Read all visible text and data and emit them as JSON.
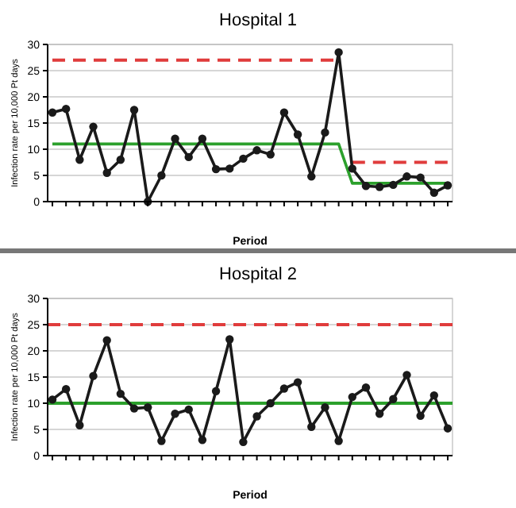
{
  "chart_data": [
    {
      "type": "line",
      "title": "Hospital 1",
      "xlabel": "Period",
      "ylabel": "Infection rate per 10,000 Pt days",
      "categories": [
        null,
        null,
        null,
        null,
        null,
        null,
        null,
        null,
        null,
        null,
        null,
        null,
        null,
        null,
        null,
        null,
        null,
        null,
        null,
        null,
        null,
        null,
        null,
        null,
        null,
        null,
        null,
        null,
        null,
        null
      ],
      "ylim": [
        0,
        30
      ],
      "yticks": [
        0,
        5,
        10,
        15,
        20,
        25,
        30
      ],
      "grid": "y",
      "marker": "circle",
      "series": [
        {
          "color": "#2ca02c",
          "marker": "none",
          "values": [
            11,
            11,
            11,
            11,
            11,
            11,
            11,
            11,
            11,
            11,
            11,
            11,
            11,
            11,
            11,
            11,
            11,
            11,
            11,
            11,
            11,
            11,
            3.5,
            3.5,
            3.5,
            3.5,
            3.5,
            3.5,
            3.5,
            3.5
          ]
        },
        {
          "color": "#e03c3c",
          "marker": "none",
          "line_style": "dashed",
          "values": [
            27,
            27,
            27,
            27,
            27,
            27,
            27,
            27,
            27,
            27,
            27,
            27,
            27,
            27,
            27,
            27,
            27,
            27,
            27,
            27,
            27,
            27,
            null,
            null,
            null,
            null,
            null,
            null,
            null,
            null
          ]
        },
        {
          "color": "#e03c3c",
          "marker": "none",
          "line_style": "dashed",
          "values": [
            null,
            null,
            null,
            null,
            null,
            null,
            null,
            null,
            null,
            null,
            null,
            null,
            null,
            null,
            null,
            null,
            null,
            null,
            null,
            null,
            null,
            null,
            7.5,
            7.5,
            7.5,
            7.5,
            7.5,
            7.5,
            7.5,
            7.5
          ]
        },
        {
          "color": "#1a1a1a",
          "values": [
            17,
            17.7,
            8,
            14.3,
            5.5,
            8,
            17.5,
            0,
            5,
            12,
            8.5,
            12,
            6.2,
            6.3,
            8.2,
            9.8,
            9,
            17,
            12.8,
            4.8,
            13.2,
            28.5,
            6.3,
            3,
            2.8,
            3.2,
            4.8,
            4.6,
            1.7,
            3.1
          ]
        }
      ]
    },
    {
      "type": "line",
      "title": "Hospital 2",
      "xlabel": "Period",
      "ylabel": "Infection rate per 10,000 Pt days",
      "categories": [
        null,
        null,
        null,
        null,
        null,
        null,
        null,
        null,
        null,
        null,
        null,
        null,
        null,
        null,
        null,
        null,
        null,
        null,
        null,
        null,
        null,
        null,
        null,
        null,
        null,
        null,
        null,
        null,
        null,
        null
      ],
      "ylim": [
        0,
        30
      ],
      "yticks": [
        0,
        5,
        10,
        15,
        20,
        25,
        30
      ],
      "grid": "y",
      "marker": "circle",
      "ref_lines": [
        {
          "axis": "y",
          "value": 10,
          "color": "#2ca02c"
        },
        {
          "axis": "y",
          "value": 25,
          "color": "#e03c3c",
          "line_style": "dashed"
        }
      ],
      "series": [
        {
          "color": "#1a1a1a",
          "values": [
            10.7,
            12.7,
            5.8,
            15.2,
            22,
            11.8,
            9,
            9.2,
            2.8,
            8,
            8.8,
            3,
            12.3,
            22.2,
            2.6,
            7.5,
            10,
            12.8,
            14,
            5.5,
            9.2,
            2.8,
            11.2,
            13,
            8,
            10.8,
            15.4,
            7.6,
            11.5,
            5.2
          ]
        }
      ]
    }
  ]
}
